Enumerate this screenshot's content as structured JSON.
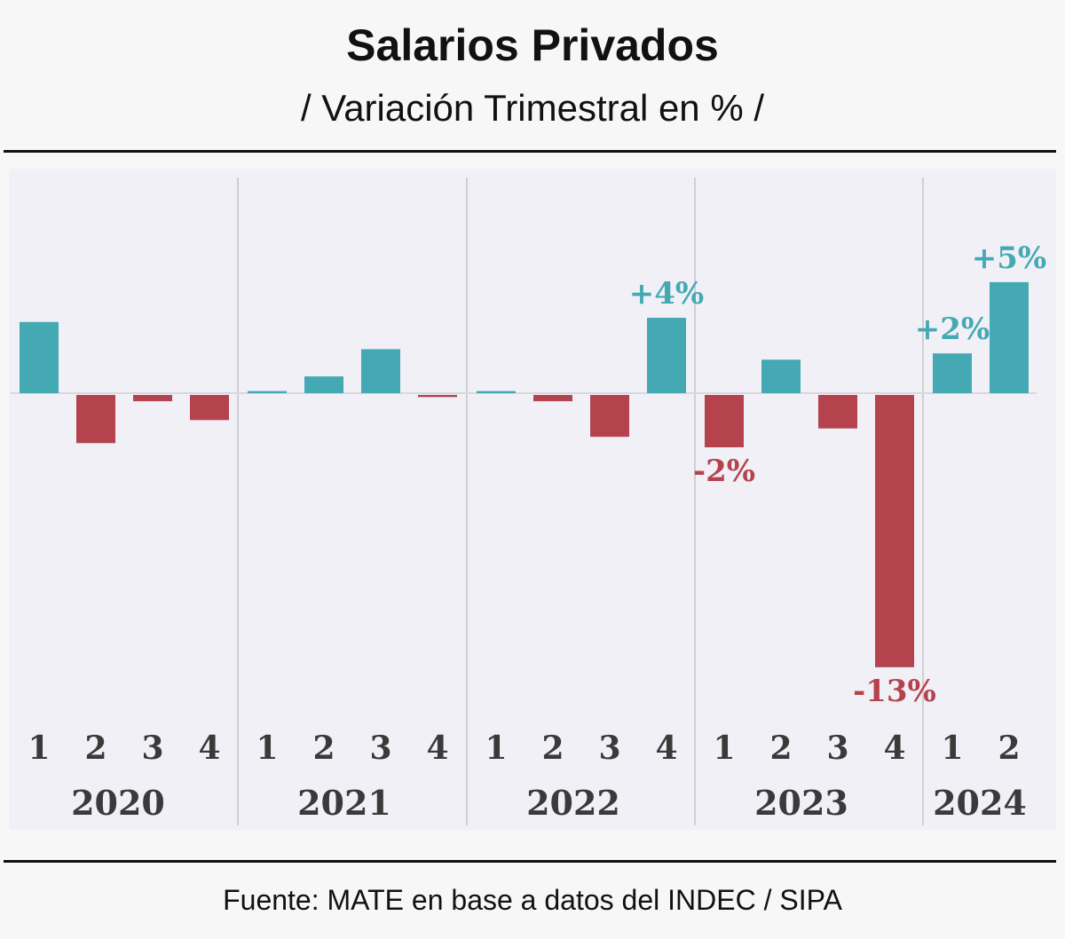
{
  "title": "Salarios Privados",
  "subtitle": "/ Variación Trimestral en % /",
  "source": "Fuente: MATE en base a datos del INDEC / SIPA",
  "colors": {
    "positive": "#45a9b3",
    "negative": "#b5434d",
    "panel": "#f1f0f7"
  },
  "chart_data": {
    "type": "bar",
    "years": [
      "2020",
      "2021",
      "2022",
      "2023",
      "2024"
    ],
    "categories": [
      "1",
      "2",
      "3",
      "4",
      "1",
      "2",
      "3",
      "4",
      "1",
      "2",
      "3",
      "4",
      "1",
      "2",
      "3",
      "4",
      "1",
      "2"
    ],
    "category_years": [
      "2020",
      "2020",
      "2020",
      "2020",
      "2021",
      "2021",
      "2021",
      "2021",
      "2022",
      "2022",
      "2022",
      "2022",
      "2023",
      "2023",
      "2023",
      "2023",
      "2024",
      "2024"
    ],
    "values": [
      3.4,
      -2.3,
      -0.3,
      -1.2,
      0.1,
      0.8,
      2.1,
      -0.1,
      0.1,
      -0.3,
      -2.0,
      3.6,
      -2.5,
      1.6,
      -1.6,
      -13,
      1.9,
      5.3
    ],
    "data_labels": {
      "11": "+4%",
      "12": "-2%",
      "15": "-13%",
      "16": "+2%",
      "17": "+5%"
    },
    "ylim": [
      -13,
      5.5
    ],
    "grid": false
  }
}
